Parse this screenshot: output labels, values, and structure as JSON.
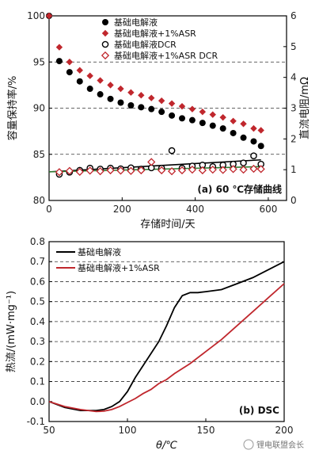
{
  "chart_data": [
    {
      "type": "scatter",
      "panel_label": "(a) 60 ℃存储曲线",
      "xlabel": "存储时间/天",
      "ylabel": "容量保持率/%",
      "y2label": "直流电阻/mΩ",
      "xlim": [
        0,
        650
      ],
      "ylim": [
        80,
        100
      ],
      "y2lim": [
        0,
        6
      ],
      "xticks": [
        0,
        200,
        400,
        600
      ],
      "yticks": [
        80,
        85,
        90,
        95,
        100
      ],
      "y2ticks": [
        0,
        1,
        2,
        3,
        4,
        5,
        6
      ],
      "grid": "dashed horizontal at 85, 90, 95",
      "legend_position": "top",
      "series": [
        {
          "name": "基础电解液",
          "axis": "left",
          "marker": "filled-circle",
          "color": "#000000",
          "x": [
            0,
            28,
            56,
            84,
            112,
            140,
            168,
            196,
            224,
            252,
            280,
            308,
            336,
            364,
            392,
            420,
            448,
            476,
            504,
            532,
            560,
            580
          ],
          "y": [
            100,
            95.1,
            93.9,
            92.9,
            92.1,
            91.5,
            91.0,
            90.6,
            90.3,
            90.1,
            89.9,
            89.6,
            89.2,
            88.9,
            88.7,
            88.4,
            88.1,
            87.8,
            87.3,
            86.8,
            86.4,
            85.9
          ]
        },
        {
          "name": "基础电解液+1%ASR",
          "axis": "left",
          "marker": "filled-diamond",
          "color": "#c0272d",
          "x": [
            0,
            28,
            56,
            84,
            112,
            140,
            168,
            196,
            224,
            252,
            280,
            308,
            336,
            364,
            392,
            420,
            448,
            476,
            504,
            532,
            560,
            580
          ],
          "y": [
            100,
            96.6,
            95.0,
            94.1,
            93.5,
            93.0,
            92.5,
            92.1,
            91.7,
            91.4,
            91.1,
            90.8,
            90.5,
            90.2,
            89.9,
            89.6,
            89.3,
            89.0,
            88.6,
            88.3,
            87.8,
            87.6
          ]
        },
        {
          "name": "基础电解液DCR",
          "axis": "right",
          "marker": "open-circle",
          "color": "#000000",
          "x": [
            28,
            56,
            84,
            112,
            140,
            168,
            196,
            224,
            252,
            280,
            308,
            336,
            364,
            392,
            420,
            448,
            476,
            504,
            532,
            560,
            580
          ],
          "y": [
            0.85,
            0.92,
            0.98,
            1.05,
            1.02,
            1.05,
            1.03,
            1.06,
            1.02,
            1.06,
            1.05,
            1.62,
            1.05,
            1.12,
            1.15,
            1.1,
            1.15,
            1.18,
            1.22,
            1.45,
            1.18
          ]
        },
        {
          "name": "基础电解液+1%ASR DCR",
          "axis": "right",
          "marker": "open-diamond",
          "color": "#c0272d",
          "x": [
            28,
            56,
            84,
            112,
            140,
            168,
            196,
            224,
            252,
            280,
            308,
            336,
            364,
            392,
            420,
            448,
            476,
            504,
            532,
            560,
            580
          ],
          "y": [
            0.92,
            0.96,
            0.93,
            0.97,
            0.95,
            0.98,
            0.97,
            0.96,
            0.98,
            1.25,
            0.98,
            0.95,
            0.98,
            1.0,
            0.98,
            1.0,
            0.99,
            1.02,
            1.0,
            1.03,
            1.02
          ]
        }
      ],
      "trendlines": [
        {
          "series": "基础电解液DCR",
          "color": "#000000",
          "x": [
            0,
            580
          ],
          "y": [
            0.93,
            1.32
          ]
        },
        {
          "series": "基础电解液+1%ASR DCR",
          "color": "#2e7d32",
          "x": [
            0,
            580
          ],
          "y": [
            0.93,
            1.1
          ]
        }
      ]
    },
    {
      "type": "line",
      "panel_label": "(b) DSC",
      "xlabel": "θ/℃",
      "ylabel": "热流/(mW·mg⁻¹)",
      "xlim": [
        50,
        200
      ],
      "ylim": [
        -0.1,
        0.8
      ],
      "xticks": [
        50,
        100,
        150,
        200
      ],
      "yticks": [
        -0.1,
        0.0,
        0.1,
        0.2,
        0.3,
        0.4,
        0.5,
        0.6,
        0.7,
        0.8
      ],
      "grid": "dashed horizontal at 0.1–0.7",
      "legend_position": "top-left",
      "series": [
        {
          "name": "基础电解液",
          "color": "#000000",
          "x": [
            50,
            60,
            70,
            80,
            85,
            90,
            95,
            100,
            105,
            110,
            115,
            120,
            125,
            130,
            135,
            140,
            145,
            150,
            160,
            170,
            180,
            190,
            200
          ],
          "y": [
            0.0,
            -0.03,
            -0.045,
            -0.045,
            -0.04,
            -0.025,
            0.0,
            0.05,
            0.12,
            0.18,
            0.24,
            0.3,
            0.38,
            0.47,
            0.53,
            0.545,
            0.545,
            0.55,
            0.56,
            0.59,
            0.62,
            0.66,
            0.7
          ]
        },
        {
          "name": "基础电解液+1%ASR",
          "color": "#c0272d",
          "x": [
            50,
            60,
            70,
            80,
            85,
            90,
            95,
            100,
            105,
            110,
            115,
            120,
            125,
            130,
            140,
            150,
            160,
            170,
            180,
            190,
            200
          ],
          "y": [
            0.0,
            -0.025,
            -0.04,
            -0.05,
            -0.048,
            -0.04,
            -0.025,
            -0.005,
            0.015,
            0.04,
            0.06,
            0.09,
            0.11,
            0.14,
            0.19,
            0.25,
            0.31,
            0.38,
            0.45,
            0.52,
            0.59
          ]
        }
      ]
    }
  ],
  "watermark": "锂电联盟会长"
}
